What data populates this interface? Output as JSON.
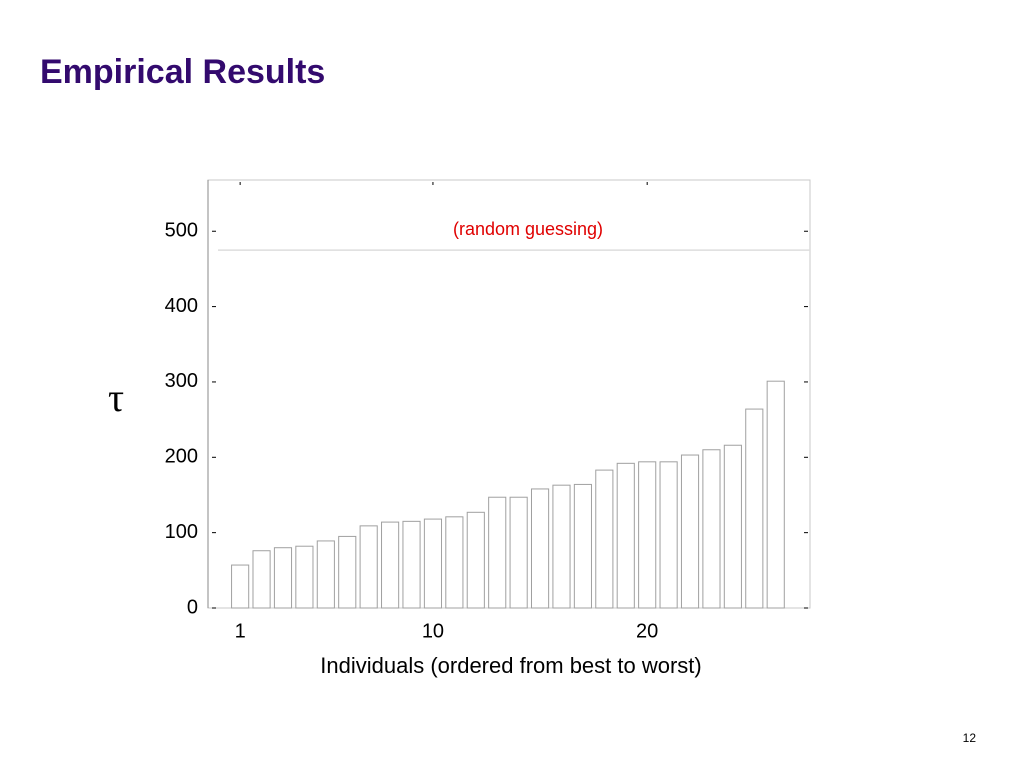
{
  "title": "Empirical Results",
  "page_number": "12",
  "chart_data": {
    "type": "bar",
    "x": [
      1,
      2,
      3,
      4,
      5,
      6,
      7,
      8,
      9,
      10,
      11,
      12,
      13,
      14,
      15,
      16,
      17,
      18,
      19,
      20,
      21,
      22,
      23,
      24,
      25,
      26
    ],
    "values": [
      57,
      76,
      80,
      82,
      89,
      95,
      109,
      114,
      115,
      118,
      121,
      127,
      147,
      147,
      158,
      163,
      164,
      183,
      192,
      194,
      194,
      203,
      210,
      216,
      264,
      301
    ],
    "color": "#ffffff",
    "edge_color": "#a0a0a0",
    "xlim": [
      -0.5,
      27.6
    ],
    "ylim": [
      0,
      568
    ],
    "xticks": [
      1,
      10,
      20
    ],
    "yticks": [
      0,
      100,
      200,
      300,
      400,
      500
    ],
    "xlabel": "Individuals (ordered from best to worst)",
    "ylabel": "τ",
    "reference_line": {
      "value": 475,
      "label": "(random guessing)",
      "color": "#e00000"
    }
  }
}
